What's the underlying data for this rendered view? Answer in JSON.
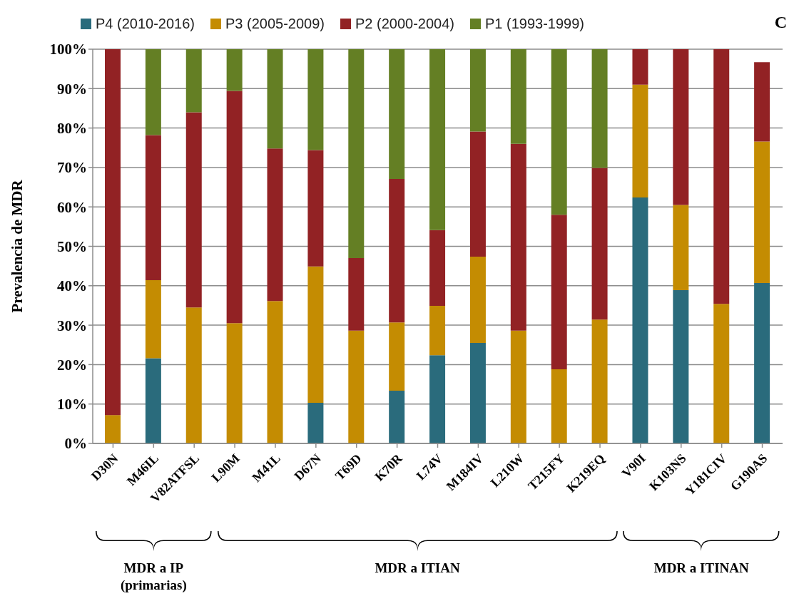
{
  "chart_data": {
    "type": "bar",
    "stacked": true,
    "ylabel": "Prevalencia de MDR",
    "categories": [
      "D30N",
      "M46IL",
      "V82ATFSL",
      "L90M",
      "M41L",
      "D67N",
      "T69D",
      "K70R",
      "L74V",
      "M184IV",
      "L210W",
      "T215FY",
      "K219EQ",
      "V90I",
      "K103NS",
      "Y181CIV",
      "G190AS"
    ],
    "series": [
      {
        "name": "P4 (2010-2016)",
        "color": "#2a6b7c",
        "values": [
          0,
          21.6,
          0,
          0,
          0,
          10.3,
          0,
          13.4,
          22.4,
          25.5,
          0,
          0,
          0,
          62.4,
          38.9,
          0,
          40.7
        ]
      },
      {
        "name": "P3 (2005-2009)",
        "color": "#c48c02",
        "values": [
          7.2,
          19.8,
          34.5,
          30.5,
          36.1,
          34.6,
          28.6,
          17.3,
          12.5,
          21.9,
          28.6,
          18.8,
          31.4,
          28.6,
          21.6,
          35.4,
          35.9
        ]
      },
      {
        "name": "P2 (2000-2004)",
        "color": "#922224",
        "values": [
          92.8,
          36.8,
          49.5,
          58.9,
          38.7,
          29.5,
          18.4,
          36.4,
          19.2,
          31.7,
          47.4,
          39.2,
          38.5,
          9.0,
          39.5,
          64.6,
          20.1
        ]
      },
      {
        "name": "P1 (1993-1999)",
        "color": "#647f24",
        "values": [
          0,
          21.8,
          16.0,
          10.6,
          25.2,
          25.6,
          53.0,
          32.9,
          45.9,
          20.9,
          24.0,
          42.0,
          30.1,
          0,
          0,
          0,
          0
        ]
      }
    ],
    "ylim": [
      0,
      100
    ],
    "yticks": [
      {
        "value": 0,
        "label": "0%"
      },
      {
        "value": 10,
        "label": "10%"
      },
      {
        "value": 20,
        "label": "20%"
      },
      {
        "value": 30,
        "label": "30%"
      },
      {
        "value": 40,
        "label": "40%"
      },
      {
        "value": 50,
        "label": "50%"
      },
      {
        "value": 60,
        "label": "60%"
      },
      {
        "value": 70,
        "label": "70%"
      },
      {
        "value": 80,
        "label": "80%"
      },
      {
        "value": 90,
        "label": "90%"
      },
      {
        "value": 100,
        "label": "100%"
      }
    ],
    "grid": "y",
    "legend": "top",
    "annotations": [
      "C",
      "MDR a IP (primarias)",
      "MDR a ITIAN",
      "MDR a ITINAN"
    ]
  }
}
